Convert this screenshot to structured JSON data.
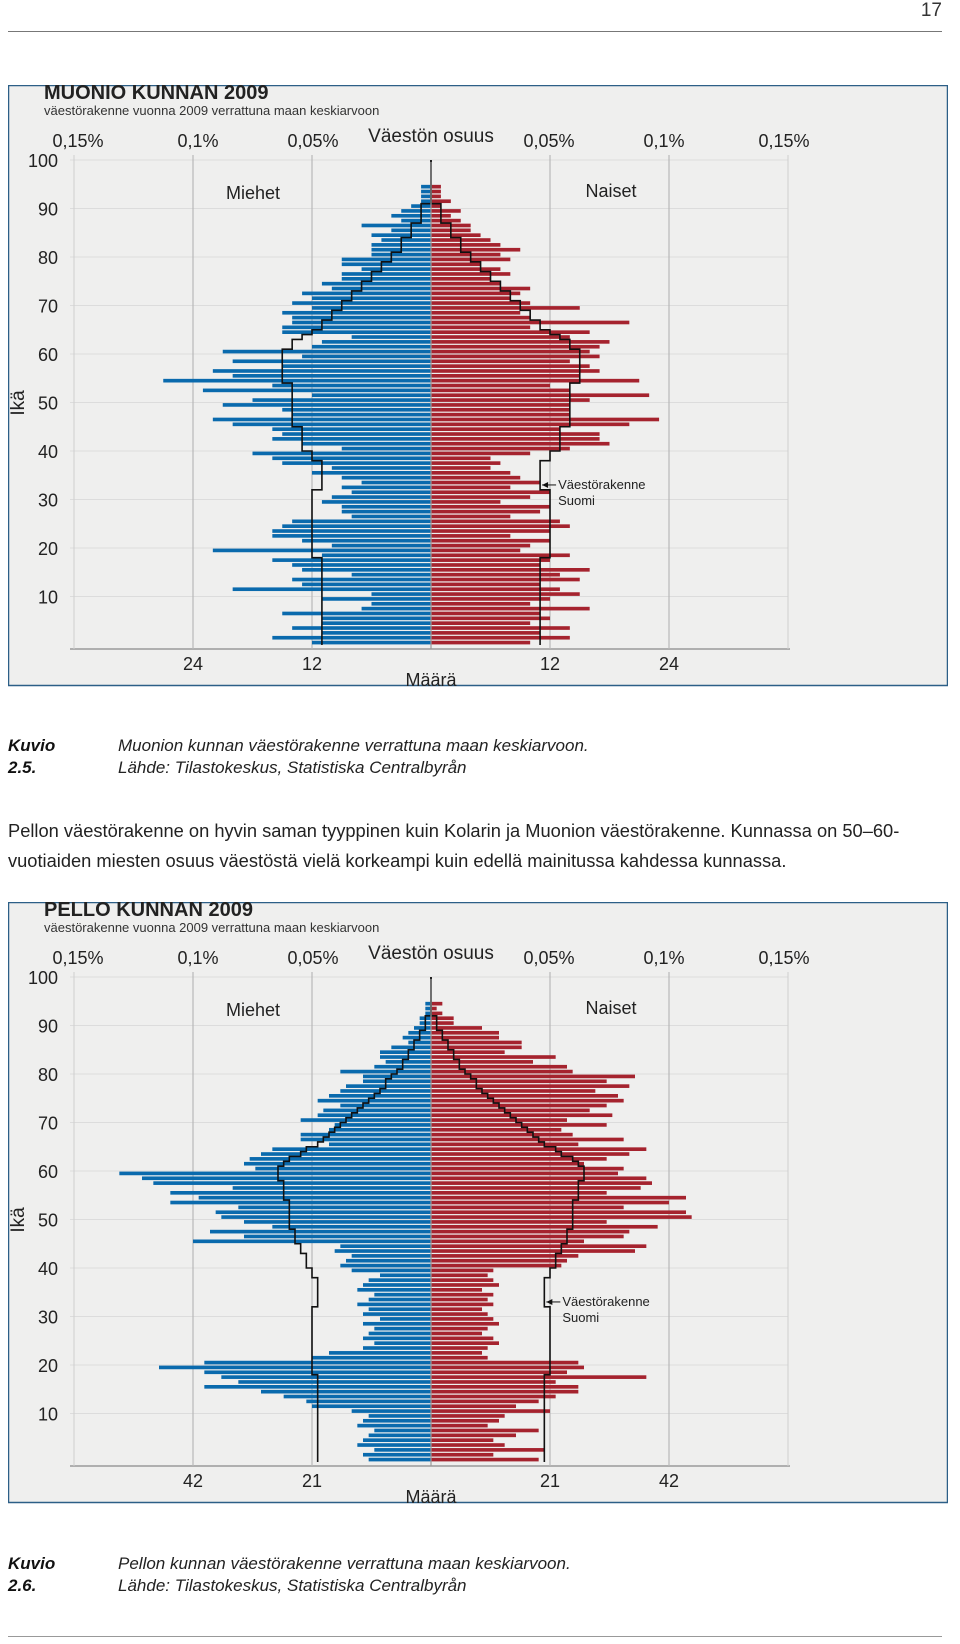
{
  "page": {
    "number": "17"
  },
  "figures": [
    {
      "id": "muonio",
      "caption": {
        "label": "Kuvio 2.5.",
        "text": "Muonion kunnan väestörakenne verrattuna maan keskiarvoon.",
        "source": "Lähde: Tilastokeskus, Statistiska Centralbyrån"
      }
    },
    {
      "id": "pello",
      "caption": {
        "label": "Kuvio 2.6.",
        "text": "Pellon kunnan väestörakenne verrattuna maan keskiarvoon.",
        "source": "Lähde: Tilastokeskus, Statistiska Centralbyrån"
      }
    }
  ],
  "body": {
    "paragraph": "Pellon väestörakenne on hyvin saman tyyppinen kuin Kolarin ja Muonion väestörakenne. Kunnassa on 50–60-vuotiaiden miesten osuus väestöstä vielä korkeampi kuin edellä mainitussa kahdessa kunnassa."
  },
  "chart_data": [
    {
      "type": "population-pyramid",
      "title": "MUONIO KUNNAN 2009",
      "subtitle": "väestörakenne vuonna 2009 verrattuna maan keskiarvoon",
      "top_axis_label": "Väestön osuus",
      "top_ticks_left": [
        "0,15%",
        "0,1%",
        "0,05%"
      ],
      "top_ticks_right": [
        "0,05%",
        "0,1%",
        "0,15%"
      ],
      "ylabel": "Ikä",
      "xlabel": "Määrä",
      "y_ticks": [
        10,
        20,
        30,
        40,
        50,
        60,
        70,
        80,
        90,
        100
      ],
      "ylim": [
        0,
        100
      ],
      "bottom_ticks_left": [
        "24",
        "12"
      ],
      "bottom_ticks_right": [
        "12",
        "24"
      ],
      "bottom_tick_values": [
        24,
        12
      ],
      "xmax": 36,
      "male_label": "Miehet",
      "female_label": "Naiset",
      "reference_label": "Väestörakenne Suomi",
      "colors": {
        "male": "#0a6aad",
        "female": "#a5232e",
        "background": "#efefee",
        "reference": "#111111"
      },
      "ages": [
        0,
        1,
        2,
        3,
        4,
        5,
        6,
        7,
        8,
        9,
        10,
        11,
        12,
        13,
        14,
        15,
        16,
        17,
        18,
        19,
        20,
        21,
        22,
        23,
        24,
        25,
        26,
        27,
        28,
        29,
        30,
        31,
        32,
        33,
        34,
        35,
        36,
        37,
        38,
        39,
        40,
        41,
        42,
        43,
        44,
        45,
        46,
        47,
        48,
        49,
        50,
        51,
        52,
        53,
        54,
        55,
        56,
        57,
        58,
        59,
        60,
        61,
        62,
        63,
        64,
        65,
        66,
        67,
        68,
        69,
        70,
        71,
        72,
        73,
        74,
        75,
        76,
        77,
        78,
        79,
        80,
        81,
        82,
        83,
        84,
        85,
        86,
        87,
        88,
        89,
        90,
        91,
        92,
        93,
        94,
        95,
        96,
        97,
        98,
        99
      ],
      "male": [
        12,
        16,
        11,
        14,
        11,
        11,
        15,
        7,
        6,
        11,
        6,
        20,
        13,
        14,
        8,
        13,
        14,
        16,
        11,
        22,
        10,
        13,
        16,
        16,
        15,
        14,
        8,
        9,
        9,
        11,
        10,
        8,
        9,
        7,
        9,
        12,
        10,
        15,
        16,
        18,
        9,
        13,
        16,
        15,
        16,
        20,
        22,
        14,
        15,
        21,
        18,
        12,
        23,
        16,
        27,
        20,
        22,
        15,
        20,
        13,
        21,
        12,
        11,
        8,
        15,
        15,
        14,
        14,
        15,
        12,
        14,
        12,
        13,
        10,
        11,
        9,
        9,
        7,
        9,
        9,
        6,
        6,
        6,
        5,
        6,
        4,
        7,
        3,
        4,
        3,
        2,
        1,
        1,
        1,
        1,
        0,
        0,
        0,
        0,
        0
      ],
      "female": [
        10,
        14,
        11,
        14,
        10,
        12,
        11,
        16,
        10,
        12,
        15,
        13,
        11,
        15,
        13,
        16,
        11,
        12,
        14,
        9,
        10,
        12,
        8,
        12,
        14,
        13,
        8,
        11,
        12,
        7,
        10,
        12,
        8,
        11,
        9,
        8,
        6,
        7,
        6,
        10,
        14,
        18,
        17,
        17,
        13,
        20,
        23,
        14,
        14,
        14,
        16,
        22,
        14,
        12,
        21,
        15,
        17,
        16,
        14,
        17,
        16,
        17,
        18,
        14,
        16,
        10,
        20,
        10,
        9,
        15,
        10,
        8,
        9,
        10,
        7,
        6,
        8,
        7,
        5,
        8,
        7,
        9,
        7,
        6,
        5,
        4,
        4,
        3,
        2,
        3,
        1,
        2,
        1,
        1,
        1,
        0,
        0,
        0,
        0,
        0
      ],
      "reference": [
        11,
        11,
        11,
        11,
        11,
        11,
        11,
        11,
        11,
        11,
        11,
        11,
        11,
        11,
        11,
        11,
        11,
        11,
        12,
        12,
        12,
        12,
        12,
        12,
        12,
        12,
        12,
        12,
        12,
        12,
        12,
        12,
        11,
        11,
        11,
        11,
        11,
        11,
        12,
        12,
        13,
        13,
        13,
        13,
        13,
        14,
        14,
        14,
        14,
        14,
        14,
        14,
        14,
        14,
        15,
        15,
        15,
        15,
        15,
        15,
        15,
        14,
        14,
        13,
        12,
        11,
        11,
        10,
        10,
        9,
        9,
        8,
        8,
        7,
        7,
        6,
        6,
        5,
        5,
        4,
        4,
        3,
        3,
        3,
        2,
        2,
        2,
        1,
        1,
        1,
        1,
        0,
        0,
        0,
        0,
        0,
        0,
        0,
        0,
        0
      ]
    },
    {
      "type": "population-pyramid",
      "title": "PELLO KUNNAN 2009",
      "subtitle": "väestörakenne vuonna 2009 verrattuna maan keskiarvoon",
      "top_axis_label": "Väestön osuus",
      "top_ticks_left": [
        "0,15%",
        "0,1%",
        "0,05%"
      ],
      "top_ticks_right": [
        "0,05%",
        "0,1%",
        "0,15%"
      ],
      "ylabel": "Ikä",
      "xlabel": "Määrä",
      "y_ticks": [
        10,
        20,
        30,
        40,
        50,
        60,
        70,
        80,
        90,
        100
      ],
      "ylim": [
        0,
        100
      ],
      "bottom_ticks_left": [
        "42",
        "21"
      ],
      "bottom_ticks_right": [
        "21",
        "42"
      ],
      "bottom_tick_values": [
        42,
        21
      ],
      "xmax": 63,
      "male_label": "Miehet",
      "female_label": "Naiset",
      "reference_label": "Väestörakenne Suomi",
      "colors": {
        "male": "#0a6aad",
        "female": "#a5232e",
        "background": "#efefee",
        "reference": "#111111"
      },
      "ages": [
        0,
        1,
        2,
        3,
        4,
        5,
        6,
        7,
        8,
        9,
        10,
        11,
        12,
        13,
        14,
        15,
        16,
        17,
        18,
        19,
        20,
        21,
        22,
        23,
        24,
        25,
        26,
        27,
        28,
        29,
        30,
        31,
        32,
        33,
        34,
        35,
        36,
        37,
        38,
        39,
        40,
        41,
        42,
        43,
        44,
        45,
        46,
        47,
        48,
        49,
        50,
        51,
        52,
        53,
        54,
        55,
        56,
        57,
        58,
        59,
        60,
        61,
        62,
        63,
        64,
        65,
        66,
        67,
        68,
        69,
        70,
        71,
        72,
        73,
        74,
        75,
        76,
        77,
        78,
        79,
        80,
        81,
        82,
        83,
        84,
        85,
        86,
        87,
        88,
        89,
        90,
        91,
        92,
        93,
        94,
        95,
        96,
        97,
        98,
        99
      ],
      "male": [
        11,
        12,
        10,
        13,
        12,
        11,
        10,
        13,
        12,
        11,
        14,
        21,
        22,
        26,
        30,
        40,
        34,
        37,
        40,
        48,
        40,
        21,
        18,
        12,
        10,
        12,
        11,
        10,
        12,
        9,
        12,
        11,
        13,
        11,
        10,
        13,
        12,
        11,
        9,
        14,
        16,
        15,
        14,
        17,
        16,
        42,
        33,
        39,
        28,
        33,
        37,
        38,
        34,
        46,
        41,
        46,
        35,
        49,
        51,
        55,
        31,
        33,
        32,
        30,
        28,
        18,
        23,
        23,
        18,
        17,
        23,
        20,
        19,
        16,
        20,
        18,
        16,
        15,
        12,
        12,
        16,
        10,
        8,
        9,
        9,
        7,
        4,
        5,
        4,
        3,
        2,
        2,
        1,
        1,
        1,
        0,
        0,
        0,
        0,
        0
      ],
      "female": [
        19,
        11,
        20,
        13,
        11,
        15,
        19,
        10,
        12,
        13,
        21,
        15,
        19,
        22,
        26,
        26,
        22,
        38,
        24,
        27,
        26,
        10,
        9,
        10,
        12,
        11,
        9,
        10,
        12,
        11,
        10,
        9,
        11,
        10,
        11,
        9,
        12,
        11,
        10,
        11,
        23,
        24,
        26,
        36,
        38,
        27,
        34,
        35,
        40,
        31,
        46,
        45,
        34,
        42,
        45,
        31,
        37,
        39,
        38,
        33,
        34,
        27,
        31,
        35,
        38,
        26,
        34,
        25,
        23,
        31,
        24,
        32,
        28,
        31,
        34,
        33,
        29,
        35,
        31,
        36,
        25,
        24,
        18,
        22,
        13,
        16,
        16,
        12,
        12,
        9,
        4,
        4,
        2,
        1,
        2,
        0,
        0,
        0,
        0,
        0
      ],
      "reference": [
        20,
        20,
        20,
        20,
        20,
        20,
        20,
        20,
        20,
        20,
        20,
        20,
        20,
        20,
        20,
        20,
        20,
        20,
        21,
        21,
        21,
        21,
        21,
        21,
        21,
        21,
        21,
        21,
        21,
        21,
        21,
        21,
        20,
        20,
        20,
        20,
        20,
        20,
        21,
        21,
        22,
        22,
        22,
        23,
        23,
        24,
        24,
        24,
        25,
        25,
        25,
        25,
        25,
        25,
        26,
        26,
        26,
        26,
        27,
        27,
        27,
        26,
        25,
        23,
        22,
        20,
        19,
        18,
        17,
        16,
        15,
        14,
        13,
        12,
        11,
        10,
        9,
        8,
        8,
        7,
        6,
        5,
        5,
        4,
        4,
        3,
        3,
        2,
        2,
        1,
        1,
        1,
        0,
        0,
        0,
        0,
        0,
        0,
        0,
        0
      ]
    }
  ]
}
